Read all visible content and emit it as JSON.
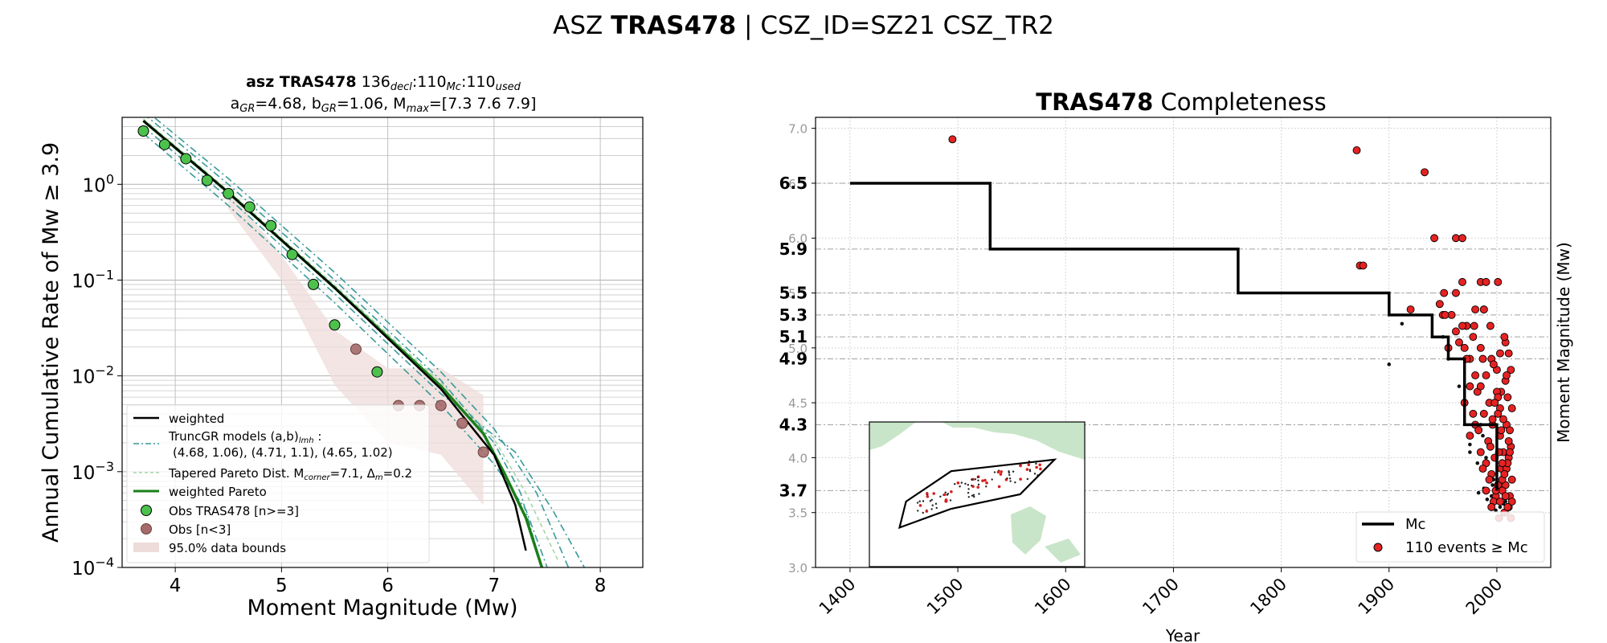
{
  "figure": {
    "suptitle_prefix": "ASZ ",
    "suptitle_bold": "TRAS478",
    "suptitle_suffix": " | CSZ_ID=SZ21 CSZ_TR2"
  },
  "chart_data": [
    {
      "type": "line",
      "title_line1": {
        "bold": "asz TRAS478",
        "n1": "136",
        "s1": "decl",
        "n2": "110",
        "s2": "Mc",
        "n3": "110",
        "s3": "used"
      },
      "title_line2": {
        "a_label": "a",
        "a_sub": "GR",
        "a_val": "=4.68,",
        "b_label": "b",
        "b_sub": "GR",
        "b_val": "=1.06, M",
        "m_sub": "max",
        "m_val": "=[7.3 7.6 7.9]"
      },
      "xlabel": "Moment Magnitude (Mw)",
      "ylabel": "Annual Cumulative Rate of Mw  ≥  3.9",
      "xlim": [
        3.5,
        8.4
      ],
      "ylim": [
        0.0001,
        5
      ],
      "yscale": "log",
      "xticks": [
        "4",
        "5",
        "6",
        "7",
        "8"
      ],
      "yticks": [
        {
          "base": "10",
          "exp": "0",
          "value": 1
        },
        {
          "base": "10",
          "exp": "−1",
          "value": 0.1
        },
        {
          "base": "10",
          "exp": "−2",
          "value": 0.01
        },
        {
          "base": "10",
          "exp": "−3",
          "value": 0.001
        },
        {
          "base": "10",
          "exp": "−4",
          "value": 0.0001
        }
      ],
      "grid": true,
      "series": [
        {
          "name": "weighted",
          "color": "#000000",
          "style": "solid",
          "x": [
            3.7,
            4.5,
            5.5,
            6.5,
            7.0,
            7.2,
            7.3
          ],
          "y": [
            4.6,
            0.82,
            0.083,
            0.0073,
            0.0015,
            0.00045,
            0.00015
          ]
        },
        {
          "name": "weighted Pareto",
          "color": "#1a7f1a",
          "style": "solid",
          "x": [
            3.7,
            4.5,
            5.5,
            6.5,
            6.9,
            7.1,
            7.3,
            7.45
          ],
          "y": [
            4.6,
            0.82,
            0.083,
            0.0078,
            0.0025,
            0.00095,
            0.00033,
            0.0001
          ]
        },
        {
          "name": "TruncGR 1",
          "color": "#3a9a9a",
          "style": "dashdot",
          "x": [
            3.7,
            4.5,
            5.5,
            6.5,
            7.0,
            7.25,
            7.45
          ],
          "y": [
            5.5,
            1.0,
            0.1,
            0.009,
            0.002,
            0.0006,
            0.0001
          ]
        },
        {
          "name": "TruncGR 2",
          "color": "#3a9a9a",
          "style": "dashdot",
          "x": [
            3.7,
            4.5,
            5.5,
            6.5,
            7.0,
            7.4,
            7.7
          ],
          "y": [
            6.2,
            1.15,
            0.12,
            0.011,
            0.0028,
            0.0006,
            0.0001
          ]
        },
        {
          "name": "TruncGR 3",
          "color": "#3a9a9a",
          "style": "dashdot",
          "x": [
            3.7,
            4.5,
            5.5,
            6.5,
            7.2,
            7.55,
            7.85
          ],
          "y": [
            4.0,
            0.72,
            0.072,
            0.0065,
            0.0016,
            0.0004,
            0.0001
          ]
        },
        {
          "name": "TruncGR 4",
          "color": "#3a9a9a",
          "style": "dashdot",
          "x": [
            3.7,
            4.5,
            5.5,
            6.5,
            7.0,
            7.3,
            7.5
          ],
          "y": [
            3.4,
            0.6,
            0.058,
            0.005,
            0.0012,
            0.0004,
            0.0001
          ]
        },
        {
          "name": "Tapered Pareto",
          "color": "#a5d6a5",
          "style": "dashed",
          "x": [
            3.7,
            4.5,
            5.5,
            6.5,
            7.0,
            7.3,
            7.6
          ],
          "y": [
            4.8,
            0.86,
            0.088,
            0.0085,
            0.0022,
            0.0006,
            0.00012
          ]
        }
      ],
      "band": {
        "upper": {
          "x": [
            4.5,
            5.0,
            5.5,
            6.0,
            6.5,
            6.9
          ],
          "y": [
            0.9,
            0.18,
            0.03,
            0.012,
            0.012,
            0.0063
          ]
        },
        "lower": {
          "x": [
            4.5,
            5.0,
            5.5,
            6.0,
            6.5,
            6.9
          ],
          "y": [
            0.55,
            0.1,
            0.008,
            0.002,
            0.0015,
            0.00045
          ]
        }
      },
      "obs": {
        "x": [
          3.7,
          3.9,
          4.1,
          4.3,
          4.5,
          4.7,
          4.9,
          5.1,
          5.3,
          5.5,
          5.9
        ],
        "y": [
          3.6,
          2.6,
          1.85,
          1.1,
          0.8,
          0.58,
          0.37,
          0.185,
          0.09,
          0.034,
          0.011
        ]
      },
      "obs_small": {
        "x": [
          5.7,
          6.1,
          6.3,
          6.5,
          6.7,
          6.9
        ],
        "y": [
          0.019,
          0.0049,
          0.0049,
          0.0049,
          0.0032,
          0.0016
        ]
      },
      "legend": {
        "position": "lower-left",
        "items": [
          {
            "label": "weighted"
          },
          {
            "label": "TruncGR models (a,b)",
            "sub": "lmh",
            "suffix": " :"
          },
          {
            "label": "(4.68, 1.06), (4.71, 1.1), (4.65, 1.02)"
          },
          {
            "label": "Tapered Pareto Dist. M",
            "sub": "corner",
            "suffix": "=7.1, Δ",
            "sub2": "m",
            "suffix2": "=0.2"
          },
          {
            "label": "weighted Pareto"
          },
          {
            "label": "Obs TRAS478 [n>=3]"
          },
          {
            "label": "Obs [n<3]"
          },
          {
            "label": "95.0% data bounds"
          }
        ]
      }
    },
    {
      "type": "scatter",
      "title_bold": "TRAS478",
      "title_rest": " Completeness",
      "xlabel": "Year",
      "ylabel": "Moment Magnitude (Mw)",
      "xlim": [
        1368,
        2050
      ],
      "ylim": [
        3.0,
        7.1
      ],
      "xticks": [
        "1400",
        "1500",
        "1600",
        "1700",
        "1800",
        "1900",
        "2000"
      ],
      "yticks_light": [
        "3.0",
        "3.5",
        "4.0",
        "4.5",
        "5.0",
        "5.5",
        "6.0",
        "6.5",
        "7.0"
      ],
      "yticks_bold": [
        "3.7",
        "4.3",
        "4.9",
        "5.1",
        "5.3",
        "5.5",
        "5.9",
        "6.5"
      ],
      "grid": true,
      "mc_step": {
        "x": [
          1400,
          1530,
          1530,
          1760,
          1760,
          1900,
          1900,
          1940,
          1940,
          1955,
          1955,
          1970,
          1970,
          2000,
          2000
        ],
        "y": [
          6.5,
          6.5,
          5.9,
          5.9,
          5.5,
          5.5,
          5.3,
          5.3,
          5.1,
          5.1,
          4.9,
          4.9,
          4.3,
          4.3,
          3.7
        ]
      },
      "events_small": {
        "x": [
          1900,
          1912,
          1950,
          1955,
          1965,
          1970,
          1975,
          1978,
          1982,
          1985,
          1988,
          1990,
          1992,
          1995,
          1997,
          2000,
          2003,
          2005,
          2008,
          2010,
          2012,
          1975,
          1983,
          1991,
          1999,
          2006,
          1987,
          1996
        ],
        "y": [
          4.85,
          5.22,
          5.1,
          4.9,
          4.65,
          4.5,
          4.05,
          4.3,
          3.95,
          4.3,
          3.72,
          4.0,
          3.7,
          3.65,
          3.8,
          3.6,
          3.55,
          3.7,
          3.6,
          3.5,
          3.65,
          4.12,
          3.68,
          3.62,
          3.52,
          3.58,
          4.2,
          3.75
        ]
      },
      "events": {
        "x": [
          1495,
          1870,
          1873,
          1876,
          1920,
          1933,
          1942,
          1951,
          1962,
          1968,
          1950,
          1955,
          1962,
          1968,
          1972,
          1978,
          1985,
          1990,
          1962,
          1970,
          1975,
          1980,
          1988,
          1995,
          2001,
          2008,
          1965,
          1972,
          1980,
          1987,
          1994,
          2000,
          2007,
          1975,
          1982,
          1990,
          1997,
          2004,
          2011,
          1970,
          1978,
          1985,
          1993,
          2000,
          2008,
          2013,
          1958,
          1980,
          1988,
          1996,
          2003,
          2010,
          1975,
          1983,
          1992,
          2001,
          2009,
          1985,
          1994,
          2003,
          2012,
          1990,
          1998,
          2006,
          2013,
          1987,
          1995,
          2004,
          2011,
          1993,
          2001,
          2009,
          1990,
          1999,
          2008,
          2014,
          1997,
          2005,
          2012,
          1995,
          2003,
          2011,
          1999,
          2007,
          2014,
          2002,
          2010,
          2005,
          2013,
          2008,
          2001,
          2006,
          2011,
          2003,
          2009,
          2014,
          1998,
          2004,
          2010,
          2002,
          2007,
          2012,
          1996,
          2005,
          1988,
          1979,
          1968,
          1947,
          1952,
          1985
        ],
        "y": [
          6.9,
          6.8,
          5.75,
          5.75,
          5.35,
          6.6,
          6.0,
          5.5,
          6.0,
          6.0,
          5.3,
          5.0,
          5.5,
          5.6,
          5.2,
          5.1,
          5.6,
          5.6,
          5.15,
          5.0,
          4.9,
          5.35,
          5.35,
          4.9,
          5.6,
          5.05,
          5.05,
          4.9,
          4.75,
          4.9,
          5.2,
          4.8,
          5.1,
          4.65,
          4.6,
          4.75,
          4.85,
          4.6,
          4.95,
          4.5,
          4.4,
          4.65,
          4.5,
          4.6,
          4.7,
          4.8,
          5.3,
          4.3,
          4.4,
          4.3,
          4.45,
          4.55,
          4.2,
          4.25,
          4.15,
          4.4,
          4.3,
          4.05,
          4.1,
          4.2,
          4.25,
          3.95,
          4.0,
          4.05,
          4.1,
          3.9,
          3.85,
          3.9,
          4.0,
          3.8,
          3.75,
          3.9,
          3.7,
          3.65,
          3.75,
          3.8,
          3.6,
          3.7,
          3.65,
          3.55,
          3.6,
          3.55,
          3.7,
          3.5,
          3.6,
          3.45,
          3.55,
          3.8,
          3.45,
          3.65,
          4.55,
          4.35,
          4.15,
          4.95,
          4.75,
          4.45,
          4.5,
          4.25,
          3.95,
          4.05,
          3.85,
          4.05,
          4.35,
          3.95,
          5.35,
          5.2,
          5.2,
          5.4,
          5.3,
          5.0
        ]
      },
      "legend": {
        "position": "lower-right",
        "items": [
          {
            "label": "Mc"
          },
          {
            "label": "110 events  ≥  Mc"
          }
        ]
      }
    }
  ],
  "colors": {
    "obs_fill": "#4cc24c",
    "obs_small_fill": "#a56a6a",
    "band_fill": "#eddcda",
    "event_fill": "#e62222",
    "inset_land": "#c9e5c9"
  },
  "inset": {
    "polygon_lonlat": [
      [
        0.14,
        0.73
      ],
      [
        0.17,
        0.55
      ],
      [
        0.38,
        0.34
      ],
      [
        0.86,
        0.26
      ],
      [
        0.7,
        0.5
      ],
      [
        0.38,
        0.6
      ]
    ]
  }
}
